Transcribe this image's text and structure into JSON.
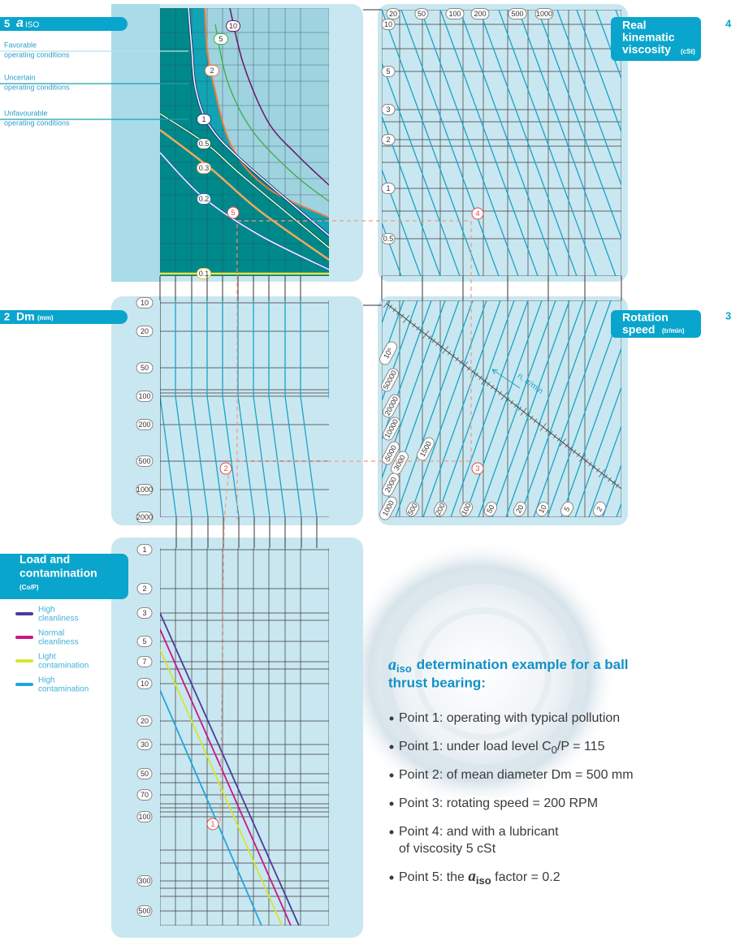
{
  "panel_5": {
    "number": "5",
    "symbol": "a",
    "symbol_sub": "ISO",
    "legend": [
      {
        "title": "Favorable",
        "subtitle": "operating conditions"
      },
      {
        "title": "Uncertain",
        "subtitle": "operating conditions"
      },
      {
        "title": "Unfavourable",
        "subtitle": "operating conditions"
      }
    ],
    "curve_labels": [
      "10",
      "5",
      "2",
      "1",
      "0.5",
      "0.3",
      "0.2",
      "0.1"
    ],
    "point": "5"
  },
  "panel_4": {
    "number": "4",
    "title": [
      "Real",
      "kinematic",
      "viscosity"
    ],
    "unit": "(cSt)",
    "top_labels": [
      "20",
      "50",
      "100",
      "200",
      "500",
      "1000"
    ],
    "left_labels": [
      "10",
      "5",
      "3",
      "2",
      "1",
      "0.5"
    ],
    "point": "4"
  },
  "panel_2": {
    "number": "2",
    "title": "Dm",
    "unit": "(mm)",
    "left_labels": [
      "10",
      "20",
      "50",
      "100",
      "200",
      "500",
      "1000",
      "2000"
    ],
    "point": "2"
  },
  "panel_3": {
    "number": "3",
    "title": [
      "Rotation",
      "speed"
    ],
    "unit": "(tr/min)",
    "scale_labels": [
      "10⁵",
      "50000",
      "20000",
      "10000",
      "5000",
      "3000",
      "2000",
      "1500",
      "1000"
    ],
    "bottom_labels": [
      "500",
      "200",
      "100",
      "50",
      "20",
      "10",
      "5",
      "2"
    ],
    "axis_label": "n, tr/min",
    "point": "3"
  },
  "panel_1": {
    "number": "1",
    "title": [
      "Load and",
      "contamination"
    ],
    "unit": "(Co/P)",
    "legend": [
      {
        "line1": "High",
        "line2": "cleanliness",
        "color": "#4b3c9c"
      },
      {
        "line1": "Normal",
        "line2": "cleanliness",
        "color": "#c8168c"
      },
      {
        "line1": "Light",
        "line2": "contamination",
        "color": "#d4e632"
      },
      {
        "line1": "High",
        "line2": "contamination",
        "color": "#22a5e0"
      }
    ],
    "left_labels": [
      "1",
      "2",
      "3",
      "5",
      "7",
      "10",
      "20",
      "30",
      "50",
      "70",
      "100",
      "300",
      "500"
    ],
    "point": "1"
  },
  "example": {
    "title": {
      "symbol": "a",
      "symbol_sub": "iso",
      "line1": "determination example for a ball",
      "line2": "thrust bearing:"
    },
    "bullets": [
      {
        "text": "Point 1: operating with typical pollution"
      },
      {
        "text": "Point 1: under load level C",
        "sub": "0",
        "tail": "/P = 115"
      },
      {
        "text": "Point 2: of mean diameter Dm = 500 mm"
      },
      {
        "text": "Point 3: rotating speed = 200 RPM"
      },
      {
        "text": "Point 4: and with a lubricant",
        "line2": "of viscosity 5 cSt"
      },
      {
        "text": "Point 5: the ",
        "symbol": "a",
        "symbol_sub": "iso",
        "tail": " factor = 0.2"
      }
    ]
  }
}
